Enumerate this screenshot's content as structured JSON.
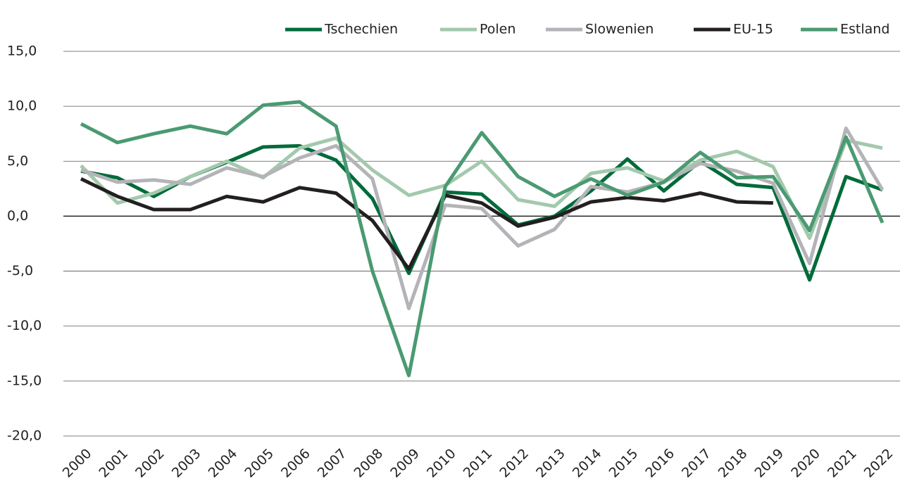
{
  "chart_data": {
    "type": "line",
    "categories": [
      "2000",
      "2001",
      "2002",
      "2003",
      "2004",
      "2005",
      "2006",
      "2007",
      "2008",
      "2009",
      "2010",
      "2011",
      "2012",
      "2013",
      "2014",
      "2015",
      "2016",
      "2017",
      "2018",
      "2019",
      "2020",
      "2021",
      "2022"
    ],
    "series": [
      {
        "name": "Tschechien",
        "color": "#006b3a",
        "values": [
          4.1,
          3.5,
          1.8,
          3.6,
          4.9,
          6.3,
          6.4,
          5.1,
          1.6,
          -5.2,
          2.2,
          2.0,
          -0.8,
          0.0,
          2.3,
          5.2,
          2.3,
          5.0,
          2.9,
          2.6,
          -5.8,
          3.6,
          2.4
        ]
      },
      {
        "name": "Polen",
        "color": "#a3c9ad",
        "values": [
          4.6,
          1.2,
          2.1,
          3.6,
          5.0,
          3.5,
          6.2,
          7.1,
          4.2,
          1.9,
          2.8,
          5.0,
          1.5,
          0.9,
          3.9,
          4.4,
          3.2,
          5.1,
          5.9,
          4.5,
          -2.0,
          6.9,
          6.2
        ]
      },
      {
        "name": "Slowenien",
        "color": "#b4b4b8",
        "values": [
          4.2,
          3.1,
          3.3,
          2.9,
          4.4,
          3.6,
          5.3,
          6.4,
          3.4,
          -8.4,
          1.0,
          0.7,
          -2.7,
          -1.2,
          2.7,
          2.2,
          3.1,
          4.8,
          4.1,
          3.0,
          -4.3,
          8.0,
          2.4
        ]
      },
      {
        "name": "EU-15",
        "color": "#231f20",
        "values": [
          3.4,
          1.8,
          0.6,
          0.6,
          1.8,
          1.3,
          2.6,
          2.1,
          -0.4,
          -4.8,
          1.9,
          1.2,
          -0.9,
          -0.1,
          1.3,
          1.7,
          1.4,
          2.1,
          1.3,
          1.2,
          null,
          null,
          null
        ]
      },
      {
        "name": "Estland",
        "color": "#4a9a72",
        "values": [
          8.4,
          6.7,
          7.5,
          8.2,
          7.5,
          10.1,
          10.4,
          8.2,
          -5.0,
          -14.5,
          2.7,
          7.6,
          3.6,
          1.8,
          3.4,
          1.9,
          3.1,
          5.8,
          3.5,
          3.6,
          -1.3,
          7.2,
          -0.6
        ]
      }
    ],
    "ylim": [
      -20,
      15
    ],
    "yticks": [
      {
        "value": -20,
        "label": "-20,0"
      },
      {
        "value": -15,
        "label": "-15,0"
      },
      {
        "value": -10,
        "label": "-10,0"
      },
      {
        "value": -5,
        "label": "-5,0"
      },
      {
        "value": 0,
        "label": "0,0"
      },
      {
        "value": 5,
        "label": "5,0"
      },
      {
        "value": 10,
        "label": "10,0"
      },
      {
        "value": 15,
        "label": "15,0"
      }
    ],
    "grid": true,
    "legend": "top-right"
  }
}
